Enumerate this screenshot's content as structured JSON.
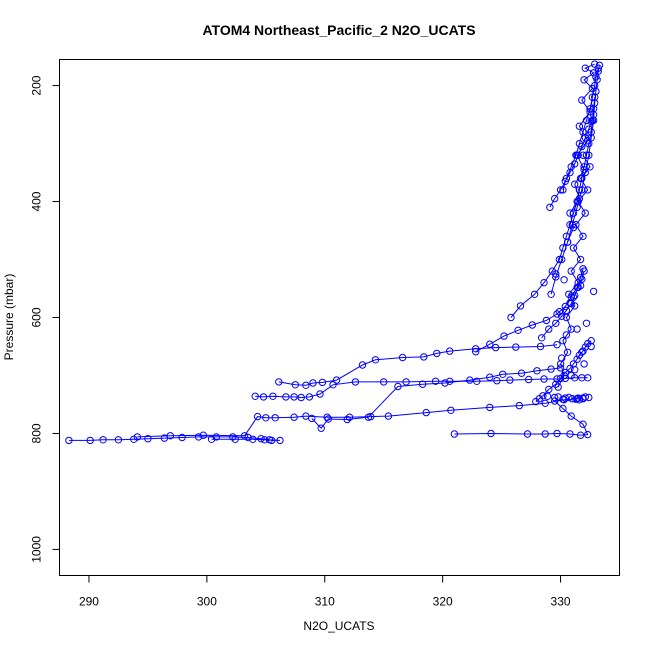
{
  "chart_data": {
    "type": "scatter",
    "title": "ATOM4 Northeast_Pacific_2 N2O_UCATS",
    "xlabel": "N2O_UCATS",
    "ylabel": "Pressure (mbar)",
    "xlim": [
      287.5,
      335
    ],
    "ylim": [
      1045,
      155
    ],
    "y_reversed": true,
    "x_ticks": [
      290,
      300,
      310,
      320,
      330
    ],
    "y_ticks": [
      200,
      400,
      600,
      800,
      1000
    ],
    "grid": false,
    "legend": "none",
    "color": "#0000ff",
    "series": [
      {
        "style": "line+points",
        "x": [
          288.3,
          290.1,
          291.2,
          292.5,
          293.8,
          295.0,
          296.4,
          297.9,
          299.3,
          300.8,
          302.2,
          303.5,
          304.6,
          305.3,
          306.2,
          305.5,
          304.9,
          303.9,
          302.4,
          300.4
        ],
        "y": [
          812,
          812,
          811,
          811,
          810,
          809,
          808,
          807,
          806,
          806,
          806,
          807,
          809,
          811,
          812,
          812,
          811,
          810,
          810,
          810
        ]
      },
      {
        "style": "line+points",
        "x": [
          294.1,
          296.9,
          299.7,
          303.2,
          304.3,
          305.0,
          305.8,
          307.4,
          308.4,
          310.2,
          312.1,
          313.9,
          315.4,
          318.6,
          320.7,
          324.0,
          326.5,
          328.7,
          330.3,
          331.4,
          331.9
        ],
        "y": [
          806,
          804,
          803,
          804,
          771,
          773,
          773,
          772,
          770,
          772,
          772,
          771,
          770,
          764,
          760,
          755,
          752,
          748,
          742,
          740,
          739
        ]
      },
      {
        "style": "line+points",
        "x": [
          304.1,
          304.8,
          305.6,
          306.7,
          307.4,
          308.0,
          308.7,
          309.6,
          310.7,
          312.6,
          315.0,
          316.9,
          319.4,
          320.6,
          322.9,
          324.6,
          325.7,
          327.3,
          328.6,
          329.7,
          330.4,
          331.2,
          331.8,
          332.3
        ],
        "y": [
          736,
          737,
          736,
          737,
          737,
          738,
          737,
          732,
          716,
          711,
          711,
          711,
          710,
          710,
          710,
          709,
          708,
          707,
          706,
          706,
          705,
          704,
          704,
          704
        ]
      },
      {
        "style": "line+points",
        "x": [
          306.1,
          307.5,
          308.4,
          309.0,
          309.8,
          311.0,
          313.2,
          314.3,
          316.6,
          318.4,
          319.5,
          320.6,
          322.8,
          324.5,
          326.2,
          328.3,
          329.7
        ],
        "y": [
          711,
          716,
          717,
          713,
          712,
          708,
          682,
          673,
          669,
          668,
          662,
          658,
          654,
          652,
          651,
          650,
          647
        ]
      },
      {
        "style": "line+points",
        "x": [
          308.9,
          309.7,
          310.3,
          311.9,
          313.7,
          316.2,
          318.3,
          320.2,
          322.3,
          324.0,
          325.1,
          326.7,
          328.0,
          329.2,
          330.0
        ],
        "y": [
          774,
          791,
          775,
          776,
          772,
          719,
          715,
          713,
          708,
          703,
          698,
          696,
          692,
          689,
          687
        ]
      },
      {
        "style": "line+points",
        "x": [
          321.0,
          324.1,
          327.2,
          328.7,
          329.7,
          330.8,
          331.7,
          332.3,
          331.9,
          330.9,
          330.2,
          329.5
        ],
        "y": [
          801,
          800,
          801,
          801,
          800,
          801,
          803,
          802,
          784,
          770,
          757,
          744
        ]
      },
      {
        "style": "line+points",
        "x": [
          322.8,
          324.0,
          325.2,
          326.4,
          327.6,
          328.8,
          329.7,
          330.4,
          330.9,
          331.4,
          331.7,
          331.9
        ],
        "y": [
          659,
          646,
          632,
          622,
          613,
          605,
          594,
          581,
          565,
          548,
          531,
          516
        ]
      },
      {
        "style": "line+points",
        "x": [
          325.8,
          326.6,
          327.8,
          328.6,
          329.3,
          329.9,
          330.2,
          330.5,
          330.8,
          331.1,
          331.4,
          331.6,
          331.8,
          332.0,
          332.2,
          332.4,
          332.6,
          332.7,
          332.8,
          332.9
        ],
        "y": [
          600,
          580,
          560,
          540,
          520,
          500,
          480,
          460,
          440,
          420,
          400,
          380,
          360,
          340,
          320,
          300,
          280,
          260,
          240,
          220
        ]
      },
      {
        "style": "line+points",
        "x": [
          329.2,
          329.6,
          330.1,
          330.6,
          331.0,
          331.4,
          331.8,
          332.1,
          332.4,
          332.6,
          332.8,
          332.9,
          333.0,
          333.1,
          333.2,
          333.3
        ],
        "y": [
          560,
          530,
          500,
          470,
          440,
          410,
          380,
          350,
          320,
          290,
          260,
          230,
          210,
          190,
          175,
          165
        ]
      },
      {
        "style": "line+points",
        "x": [
          329.8,
          330.3,
          330.0,
          330.6,
          330.2,
          330.9,
          330.5,
          331.2,
          330.7,
          331.5,
          330.9,
          331.7,
          331.1,
          331.9,
          331.3,
          332.1,
          331.5,
          332.3,
          331.7,
          332.5,
          331.9
        ],
        "y": [
          720,
          700,
          680,
          660,
          640,
          620,
          600,
          580,
          560,
          540,
          520,
          500,
          480,
          460,
          440,
          420,
          400,
          380,
          360,
          340,
          320
        ]
      },
      {
        "style": "line+points",
        "x": [
          330.6,
          331.1,
          330.8,
          331.6,
          331.2,
          332.0,
          331.4,
          332.3,
          331.6,
          332.5,
          331.8,
          332.7,
          332.0,
          332.8,
          332.1,
          332.9
        ],
        "y": [
          470,
          445,
          420,
          395,
          370,
          345,
          320,
          295,
          270,
          245,
          225,
          205,
          190,
          178,
          170,
          163
        ]
      },
      {
        "style": "line+points",
        "x": [
          328.4,
          329.0,
          329.6,
          330.1,
          330.5,
          330.9,
          331.2,
          331.5,
          331.8,
          332.0
        ],
        "y": [
          635,
          620,
          610,
          598,
          588,
          576,
          562,
          548,
          534,
          520
        ]
      },
      {
        "style": "line+points",
        "x": [
          327.9,
          328.5,
          329.0,
          329.6,
          330.0,
          330.4,
          330.8,
          331.1,
          331.4,
          331.6,
          331.9,
          332.1,
          332.3,
          332.6
        ],
        "y": [
          745,
          735,
          724,
          715,
          705,
          695,
          688,
          680,
          672,
          665,
          658,
          651,
          645,
          640
        ]
      },
      {
        "style": "line+points",
        "x": [
          329.1,
          329.5,
          330.0,
          330.4,
          330.8,
          331.2,
          331.5,
          331.8,
          332.1,
          332.4,
          332.6,
          332.8
        ],
        "y": [
          410,
          395,
          380,
          365,
          350,
          335,
          320,
          305,
          290,
          275,
          262,
          250
        ]
      },
      {
        "style": "line+points",
        "x": [
          330.2,
          330.5,
          330.9,
          331.3,
          331.6,
          331.9,
          332.2,
          332.5,
          332.7,
          332.9,
          333.0,
          333.2
        ],
        "y": [
          380,
          360,
          340,
          320,
          300,
          280,
          260,
          240,
          220,
          200,
          185,
          170
        ]
      },
      {
        "style": "points",
        "x": [
          328.2,
          328.9,
          329.5,
          331.5,
          330.2,
          329.8,
          331.0,
          331.6,
          330.7,
          332.1,
          331.3,
          330.4,
          331.9,
          332.4,
          330.9,
          331.2,
          332.0,
          330.1,
          331.8,
          332.6,
          330.5,
          331.4,
          332.2,
          329.9,
          330.8,
          331.1,
          332.8,
          331.7,
          330.3,
          329.6
        ],
        "y": [
          740,
          736,
          738,
          739,
          741,
          737,
          740,
          742,
          738,
          737,
          741,
          739,
          740,
          738,
          700,
          690,
          680,
          670,
          660,
          650,
          630,
          620,
          610,
          590,
          575,
          565,
          555,
          545,
          535,
          525
        ]
      }
    ]
  }
}
